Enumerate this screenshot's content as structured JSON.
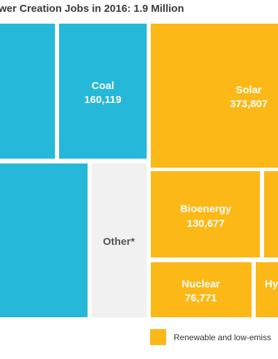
{
  "chart_data": {
    "type": "treemap",
    "title": "wer Creation Jobs in 2016: 1.9 Million",
    "colors": {
      "fossil": "#26b8d8",
      "renewable": "#fbb817",
      "other": "#f1f1f1",
      "label_on_fill": "#ffffff",
      "label_other": "#555555"
    },
    "tiles": [
      {
        "name": "",
        "value": null,
        "group": "fossil"
      },
      {
        "name": "Coal",
        "value": "160,119",
        "group": "fossil"
      },
      {
        "name": "Solar",
        "value": "373,807",
        "group": "renewable"
      },
      {
        "name": "",
        "value": null,
        "group": "fossil"
      },
      {
        "name": "Other*",
        "value": null,
        "group": "other"
      },
      {
        "name": "Bioenergy",
        "value": "130,677",
        "group": "renewable"
      },
      {
        "name": "",
        "value": null,
        "group": "renewable"
      },
      {
        "name": "Nuclear",
        "value": "76,771",
        "group": "renewable"
      },
      {
        "name": "Hy",
        "value": null,
        "group": "renewable"
      }
    ],
    "legend": [
      {
        "label": "Renewable and low-emiss",
        "group": "renewable"
      }
    ]
  }
}
